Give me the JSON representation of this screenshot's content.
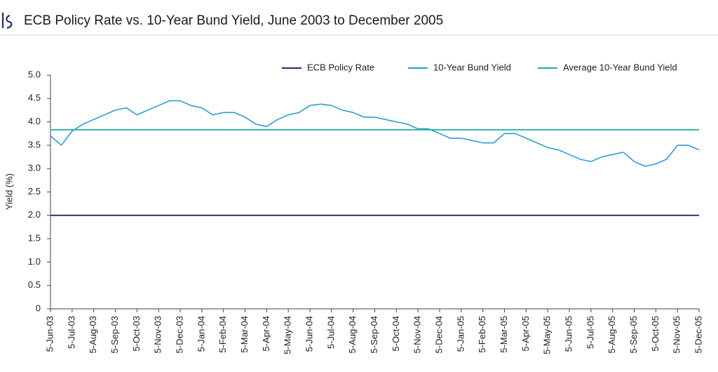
{
  "chart_data": {
    "type": "line",
    "title": "ECB Policy Rate vs. 10-Year Bund Yield, June 2003 to December 2005",
    "y_label": "Yield (%)",
    "categories": [
      "5-Jun-03",
      null,
      "5-Jul-03",
      null,
      "5-Aug-03",
      null,
      "5-Sep-03",
      null,
      "5-Oct-03",
      null,
      "5-Nov-03",
      null,
      "5-Dec-03",
      null,
      "5-Jan-04",
      null,
      "5-Feb-04",
      null,
      "5-Mar-04",
      null,
      "5-Apr-04",
      null,
      "5-May-04",
      null,
      "5-Jun-04",
      null,
      "5-Jul-04",
      null,
      "5-Aug-04",
      null,
      "5-Sep-04",
      null,
      "5-Oct-04",
      null,
      "5-Nov-04",
      null,
      "5-Dec-04",
      null,
      "5-Jan-05",
      null,
      "5-Feb-05",
      null,
      "5-Mar-05",
      null,
      "5-Apr-05",
      null,
      "5-May-05",
      null,
      "5-Jun-05",
      null,
      "5-Jul-05",
      null,
      "5-Aug-05",
      null,
      "5-Sep-05",
      null,
      "5-Oct-05",
      null,
      "5-Nov-05",
      null,
      "5-Dec-05"
    ],
    "series": [
      {
        "name": "ECB Policy Rate",
        "color": "#1f2d6b",
        "values": [
          2,
          2,
          2,
          2,
          2,
          2,
          2,
          2,
          2,
          2,
          2,
          2,
          2,
          2,
          2,
          2,
          2,
          2,
          2,
          2,
          2,
          2,
          2,
          2,
          2,
          2,
          2,
          2,
          2,
          2,
          2,
          2,
          2,
          2,
          2,
          2,
          2,
          2,
          2,
          2,
          2,
          2,
          2,
          2,
          2,
          2,
          2,
          2,
          2,
          2,
          2,
          2,
          2,
          2,
          2,
          2,
          2,
          2,
          2,
          2,
          2
        ]
      },
      {
        "name": "10-Year Bund Yield",
        "color": "#2a9fd6",
        "values": [
          3.7,
          3.5,
          3.8,
          3.95,
          4.05,
          4.15,
          4.25,
          4.3,
          4.15,
          4.25,
          4.35,
          4.45,
          4.45,
          4.35,
          4.3,
          4.15,
          4.2,
          4.2,
          4.1,
          3.95,
          3.9,
          4.05,
          4.15,
          4.2,
          4.35,
          4.38,
          4.35,
          4.25,
          4.2,
          4.1,
          4.1,
          4.05,
          4.0,
          3.95,
          3.85,
          3.85,
          3.75,
          3.65,
          3.65,
          3.6,
          3.55,
          3.55,
          3.75,
          3.75,
          3.65,
          3.55,
          3.45,
          3.4,
          3.3,
          3.2,
          3.15,
          3.25,
          3.3,
          3.35,
          3.15,
          3.05,
          3.1,
          3.2,
          3.5,
          3.5,
          3.4
        ]
      },
      {
        "name": "Average 10-Year Bund Yield",
        "color": "#1fb0a0",
        "values": [
          3.83,
          3.83,
          3.83,
          3.83,
          3.83,
          3.83,
          3.83,
          3.83,
          3.83,
          3.83,
          3.83,
          3.83,
          3.83,
          3.83,
          3.83,
          3.83,
          3.83,
          3.83,
          3.83,
          3.83,
          3.83,
          3.83,
          3.83,
          3.83,
          3.83,
          3.83,
          3.83,
          3.83,
          3.83,
          3.83,
          3.83,
          3.83,
          3.83,
          3.83,
          3.83,
          3.83,
          3.83,
          3.83,
          3.83,
          3.83,
          3.83,
          3.83,
          3.83,
          3.83,
          3.83,
          3.83,
          3.83,
          3.83,
          3.83,
          3.83,
          3.83,
          3.83,
          3.83,
          3.83,
          3.83,
          3.83,
          3.83,
          3.83,
          3.83,
          3.83,
          3.83
        ]
      }
    ],
    "ylim": [
      0,
      5
    ],
    "yticks": [
      0,
      {
        "value": 0.5,
        "label": "0.5"
      },
      {
        "value": 1,
        "label": "1.0"
      },
      {
        "value": 1.5,
        "label": "1.5"
      },
      {
        "value": 2,
        "label": "2.0"
      },
      {
        "value": 2.5,
        "label": "2.5"
      },
      {
        "value": 3,
        "label": "3.0"
      },
      {
        "value": 3.5,
        "label": "3.5"
      },
      {
        "value": 4,
        "label": "4.0"
      },
      {
        "value": 4.5,
        "label": "4.5"
      },
      {
        "value": 5,
        "label": "5.0"
      }
    ],
    "grid": false,
    "legend": "top"
  }
}
